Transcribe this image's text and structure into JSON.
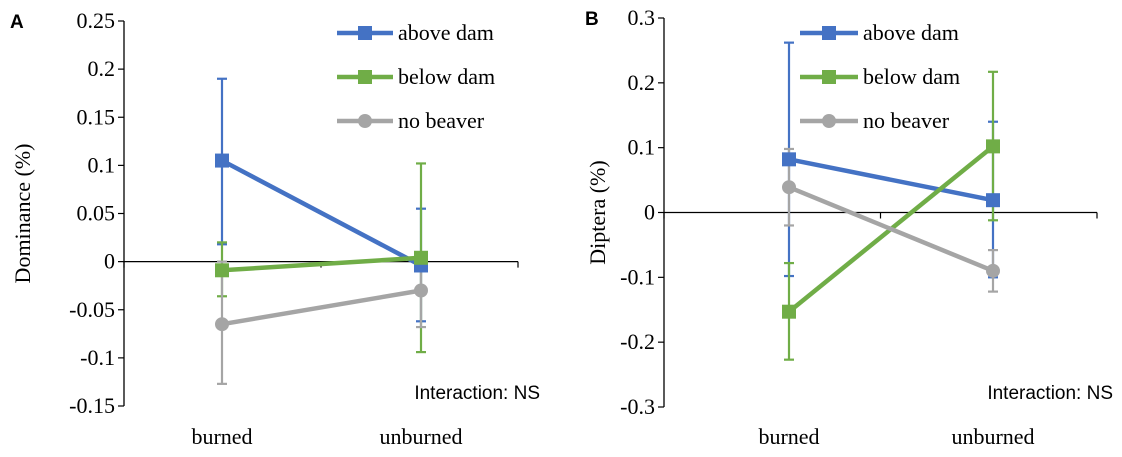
{
  "chart_data": [
    {
      "type": "line",
      "panel_label": "A",
      "title": "",
      "xlabel": "",
      "ylabel": "Dominance (%)",
      "ylim": [
        -0.15,
        0.25
      ],
      "yticks": [
        -0.15,
        -0.1,
        -0.05,
        0,
        0.05,
        0.1,
        0.15,
        0.2,
        0.25
      ],
      "ytick_labels": [
        "-0.15",
        "-0.1",
        "-0.05",
        "0",
        "0.05",
        "0.1",
        "0.15",
        "0.2",
        "0.25"
      ],
      "categories": [
        "burned",
        "unburned"
      ],
      "grid": false,
      "legend_position": "top-right",
      "annotation": "Interaction: NS",
      "series": [
        {
          "name": "above dam",
          "color": "#4472C4",
          "marker": "square",
          "values": [
            0.105,
            -0.004
          ],
          "err_low": [
            0.018,
            -0.062
          ],
          "err_high": [
            0.19,
            0.055
          ]
        },
        {
          "name": "below dam",
          "color": "#70AD47",
          "marker": "square",
          "values": [
            -0.009,
            0.004
          ],
          "err_low": [
            -0.036,
            -0.094
          ],
          "err_high": [
            0.02,
            0.102
          ]
        },
        {
          "name": "no beaver",
          "color": "#A5A5A5",
          "marker": "circle",
          "values": [
            -0.065,
            -0.03
          ],
          "err_low": [
            -0.127,
            -0.068
          ],
          "err_high": [
            0.0,
            0.0
          ]
        }
      ]
    },
    {
      "type": "line",
      "panel_label": "B",
      "title": "",
      "xlabel": "",
      "ylabel": "Diptera (%)",
      "ylim": [
        -0.3,
        0.3
      ],
      "yticks": [
        -0.3,
        -0.2,
        -0.1,
        0,
        0.1,
        0.2,
        0.3
      ],
      "ytick_labels": [
        "-0.3",
        "-0.2",
        "-0.1",
        "0",
        "0.1",
        "0.2",
        "0.3"
      ],
      "categories": [
        "burned",
        "unburned"
      ],
      "grid": false,
      "legend_position": "top-right",
      "annotation": "Interaction: NS",
      "series": [
        {
          "name": "above dam",
          "color": "#4472C4",
          "marker": "square",
          "values": [
            0.082,
            0.019
          ],
          "err_low": [
            -0.098,
            -0.1
          ],
          "err_high": [
            0.262,
            0.14
          ]
        },
        {
          "name": "below dam",
          "color": "#70AD47",
          "marker": "square",
          "values": [
            -0.153,
            0.102
          ],
          "err_low": [
            -0.227,
            -0.012
          ],
          "err_high": [
            -0.078,
            0.217
          ]
        },
        {
          "name": "no beaver",
          "color": "#A5A5A5",
          "marker": "circle",
          "values": [
            0.039,
            -0.09
          ],
          "err_low": [
            -0.02,
            -0.122
          ],
          "err_high": [
            0.098,
            -0.058
          ]
        }
      ]
    }
  ]
}
